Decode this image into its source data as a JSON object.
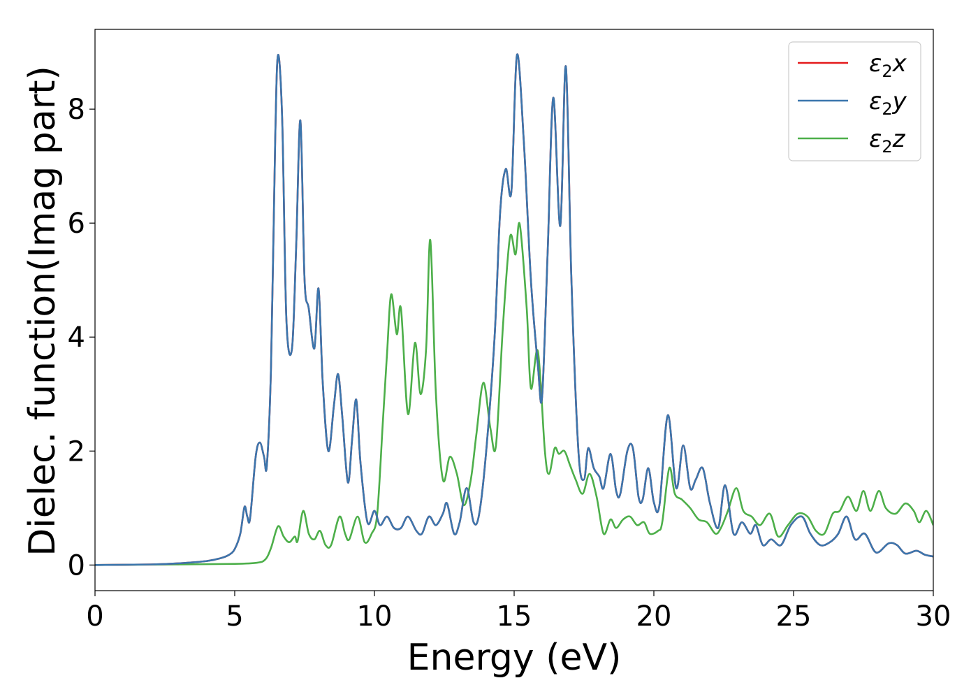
{
  "chart_data": {
    "type": "line",
    "xlabel": "Energy (eV)",
    "ylabel": "Dielec. function(Imag part)",
    "xlim": [
      0,
      30
    ],
    "ylim": [
      -0.45,
      9.4
    ],
    "x_ticks": [
      "0",
      "5",
      "10",
      "15",
      "20",
      "25",
      "30"
    ],
    "y_ticks": [
      "0",
      "2",
      "4",
      "6",
      "8"
    ],
    "legend_position": "upper right",
    "series": [
      {
        "name": "ε₂x",
        "legend_base": "ε",
        "legend_sub": "2",
        "legend_suffix": "x",
        "color": "#e41a1c",
        "same_as": "ε₂y"
      },
      {
        "name": "ε₂y",
        "legend_base": "ε",
        "legend_sub": "2",
        "legend_suffix": "y",
        "color": "#3b76ad",
        "points": [
          [
            0.0,
            0.0
          ],
          [
            2.0,
            0.01
          ],
          [
            3.0,
            0.03
          ],
          [
            4.0,
            0.07
          ],
          [
            4.5,
            0.12
          ],
          [
            4.8,
            0.18
          ],
          [
            5.0,
            0.28
          ],
          [
            5.2,
            0.55
          ],
          [
            5.35,
            1.02
          ],
          [
            5.45,
            0.85
          ],
          [
            5.55,
            0.82
          ],
          [
            5.75,
            1.9
          ],
          [
            5.9,
            2.15
          ],
          [
            6.05,
            1.9
          ],
          [
            6.15,
            1.75
          ],
          [
            6.3,
            3.5
          ],
          [
            6.45,
            7.5
          ],
          [
            6.55,
            8.95
          ],
          [
            6.7,
            7.8
          ],
          [
            6.85,
            4.3
          ],
          [
            7.05,
            3.8
          ],
          [
            7.2,
            5.6
          ],
          [
            7.35,
            7.8
          ],
          [
            7.5,
            5.0
          ],
          [
            7.65,
            4.5
          ],
          [
            7.85,
            3.8
          ],
          [
            8.0,
            4.85
          ],
          [
            8.15,
            3.2
          ],
          [
            8.35,
            2.0
          ],
          [
            8.55,
            2.8
          ],
          [
            8.7,
            3.35
          ],
          [
            8.85,
            2.6
          ],
          [
            9.05,
            1.45
          ],
          [
            9.2,
            2.2
          ],
          [
            9.35,
            2.9
          ],
          [
            9.5,
            1.8
          ],
          [
            9.75,
            0.75
          ],
          [
            10.0,
            0.95
          ],
          [
            10.2,
            0.7
          ],
          [
            10.45,
            0.85
          ],
          [
            10.7,
            0.65
          ],
          [
            10.95,
            0.65
          ],
          [
            11.2,
            0.85
          ],
          [
            11.5,
            0.6
          ],
          [
            11.7,
            0.55
          ],
          [
            11.95,
            0.85
          ],
          [
            12.2,
            0.7
          ],
          [
            12.45,
            0.9
          ],
          [
            12.6,
            1.08
          ],
          [
            12.85,
            0.55
          ],
          [
            13.05,
            0.75
          ],
          [
            13.3,
            1.35
          ],
          [
            13.55,
            0.75
          ],
          [
            13.75,
            0.9
          ],
          [
            14.0,
            2.0
          ],
          [
            14.3,
            4.0
          ],
          [
            14.5,
            6.2
          ],
          [
            14.7,
            6.95
          ],
          [
            14.9,
            6.55
          ],
          [
            15.1,
            8.95
          ],
          [
            15.35,
            7.4
          ],
          [
            15.6,
            5.0
          ],
          [
            15.85,
            3.5
          ],
          [
            16.0,
            2.95
          ],
          [
            16.2,
            5.5
          ],
          [
            16.4,
            8.2
          ],
          [
            16.65,
            5.95
          ],
          [
            16.85,
            8.75
          ],
          [
            17.05,
            5.0
          ],
          [
            17.3,
            2.0
          ],
          [
            17.5,
            1.5
          ],
          [
            17.65,
            2.05
          ],
          [
            17.85,
            1.7
          ],
          [
            18.05,
            1.55
          ],
          [
            18.2,
            1.35
          ],
          [
            18.45,
            1.95
          ],
          [
            18.65,
            1.3
          ],
          [
            18.8,
            1.25
          ],
          [
            19.05,
            2.0
          ],
          [
            19.25,
            2.05
          ],
          [
            19.45,
            1.2
          ],
          [
            19.6,
            1.15
          ],
          [
            19.8,
            1.7
          ],
          [
            20.0,
            1.1
          ],
          [
            20.2,
            1.05
          ],
          [
            20.5,
            2.63
          ],
          [
            20.8,
            1.35
          ],
          [
            21.05,
            2.1
          ],
          [
            21.3,
            1.35
          ],
          [
            21.5,
            1.5
          ],
          [
            21.75,
            1.7
          ],
          [
            22.0,
            1.1
          ],
          [
            22.3,
            0.65
          ],
          [
            22.55,
            1.4
          ],
          [
            22.85,
            0.55
          ],
          [
            23.15,
            0.75
          ],
          [
            23.45,
            0.55
          ],
          [
            23.65,
            0.7
          ],
          [
            23.9,
            0.35
          ],
          [
            24.2,
            0.45
          ],
          [
            24.55,
            0.35
          ],
          [
            24.9,
            0.7
          ],
          [
            25.3,
            0.85
          ],
          [
            25.6,
            0.55
          ],
          [
            25.95,
            0.35
          ],
          [
            26.3,
            0.4
          ],
          [
            26.6,
            0.55
          ],
          [
            26.9,
            0.85
          ],
          [
            27.2,
            0.45
          ],
          [
            27.55,
            0.55
          ],
          [
            27.95,
            0.22
          ],
          [
            28.4,
            0.38
          ],
          [
            28.7,
            0.35
          ],
          [
            29.0,
            0.2
          ],
          [
            29.4,
            0.25
          ],
          [
            29.7,
            0.18
          ],
          [
            30.0,
            0.15
          ]
        ]
      },
      {
        "name": "ε₂z",
        "legend_base": "ε",
        "legend_sub": "2",
        "legend_suffix": "z",
        "color": "#4daf4a",
        "points": [
          [
            0.0,
            0.0
          ],
          [
            3.0,
            0.01
          ],
          [
            5.0,
            0.02
          ],
          [
            5.8,
            0.04
          ],
          [
            6.1,
            0.1
          ],
          [
            6.3,
            0.3
          ],
          [
            6.55,
            0.68
          ],
          [
            6.75,
            0.5
          ],
          [
            6.95,
            0.4
          ],
          [
            7.15,
            0.5
          ],
          [
            7.25,
            0.42
          ],
          [
            7.45,
            0.95
          ],
          [
            7.65,
            0.55
          ],
          [
            7.85,
            0.45
          ],
          [
            8.05,
            0.6
          ],
          [
            8.25,
            0.35
          ],
          [
            8.45,
            0.35
          ],
          [
            8.75,
            0.85
          ],
          [
            8.95,
            0.55
          ],
          [
            9.1,
            0.45
          ],
          [
            9.4,
            0.85
          ],
          [
            9.65,
            0.4
          ],
          [
            9.9,
            0.55
          ],
          [
            10.1,
            0.9
          ],
          [
            10.3,
            2.5
          ],
          [
            10.45,
            3.7
          ],
          [
            10.6,
            4.75
          ],
          [
            10.8,
            4.05
          ],
          [
            10.95,
            4.5
          ],
          [
            11.2,
            2.65
          ],
          [
            11.45,
            3.9
          ],
          [
            11.65,
            3.0
          ],
          [
            11.85,
            3.8
          ],
          [
            12.0,
            5.7
          ],
          [
            12.2,
            3.0
          ],
          [
            12.45,
            1.5
          ],
          [
            12.7,
            1.9
          ],
          [
            12.95,
            1.6
          ],
          [
            13.2,
            1.05
          ],
          [
            13.45,
            1.5
          ],
          [
            13.65,
            2.3
          ],
          [
            13.9,
            3.2
          ],
          [
            14.15,
            2.4
          ],
          [
            14.35,
            2.1
          ],
          [
            14.6,
            4.2
          ],
          [
            14.85,
            5.75
          ],
          [
            15.05,
            5.45
          ],
          [
            15.2,
            5.98
          ],
          [
            15.45,
            4.5
          ],
          [
            15.6,
            3.1
          ],
          [
            15.85,
            3.75
          ],
          [
            16.1,
            2.0
          ],
          [
            16.25,
            1.6
          ],
          [
            16.45,
            2.05
          ],
          [
            16.6,
            1.95
          ],
          [
            16.8,
            2.0
          ],
          [
            17.0,
            1.75
          ],
          [
            17.2,
            1.5
          ],
          [
            17.45,
            1.25
          ],
          [
            17.7,
            1.6
          ],
          [
            17.95,
            1.2
          ],
          [
            18.2,
            0.55
          ],
          [
            18.45,
            0.8
          ],
          [
            18.65,
            0.65
          ],
          [
            18.9,
            0.8
          ],
          [
            19.15,
            0.85
          ],
          [
            19.4,
            0.7
          ],
          [
            19.65,
            0.75
          ],
          [
            19.85,
            0.55
          ],
          [
            20.15,
            0.6
          ],
          [
            20.3,
            0.75
          ],
          [
            20.55,
            1.7
          ],
          [
            20.75,
            1.25
          ],
          [
            21.0,
            1.15
          ],
          [
            21.3,
            1.0
          ],
          [
            21.6,
            0.8
          ],
          [
            21.9,
            0.75
          ],
          [
            22.2,
            0.55
          ],
          [
            22.4,
            0.65
          ],
          [
            22.65,
            0.95
          ],
          [
            22.95,
            1.35
          ],
          [
            23.2,
            0.95
          ],
          [
            23.5,
            0.85
          ],
          [
            23.8,
            0.7
          ],
          [
            24.15,
            0.9
          ],
          [
            24.45,
            0.5
          ],
          [
            24.8,
            0.7
          ],
          [
            25.15,
            0.9
          ],
          [
            25.5,
            0.85
          ],
          [
            25.8,
            0.6
          ],
          [
            26.1,
            0.55
          ],
          [
            26.4,
            0.9
          ],
          [
            26.65,
            0.95
          ],
          [
            26.95,
            1.2
          ],
          [
            27.25,
            0.95
          ],
          [
            27.5,
            1.3
          ],
          [
            27.75,
            0.95
          ],
          [
            28.05,
            1.3
          ],
          [
            28.3,
            1.0
          ],
          [
            28.65,
            0.9
          ],
          [
            29.0,
            1.08
          ],
          [
            29.3,
            0.95
          ],
          [
            29.5,
            0.75
          ],
          [
            29.75,
            0.95
          ],
          [
            30.0,
            0.7
          ]
        ]
      }
    ]
  }
}
